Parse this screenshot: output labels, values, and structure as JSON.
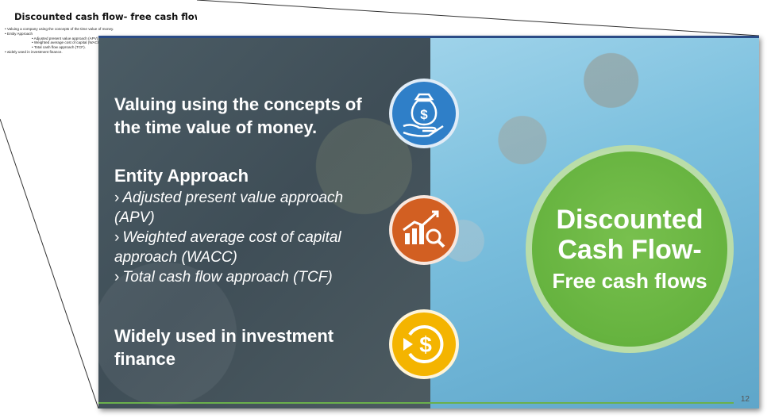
{
  "thumbnail": {
    "title": "Discounted cash flow- free cash flows",
    "bullets": [
      {
        "level": 1,
        "text": "Valuing a company using the concepts of the time value of money."
      },
      {
        "level": 1,
        "text": "Entity Approach"
      },
      {
        "level": 2,
        "text": "Adjusted present value approach (APV)"
      },
      {
        "level": 2,
        "text": "Weighted average cost of capital (WACC)"
      },
      {
        "level": 2,
        "text": "Total cash flow approach (TCF)."
      },
      {
        "level": 1,
        "text": "widely used in investment finance."
      }
    ]
  },
  "slide": {
    "heading1": "Valuing using the concepts of the time value of money.",
    "heading2": "Entity Approach",
    "sub1": "Adjusted present value approach (APV)",
    "sub2": "Weighted average cost of capital approach (WACC)",
    "sub3": "Total cash flow approach (TCF)",
    "heading3": "Widely used in investment finance",
    "arrow_glyph": "›",
    "circle_line1": "Discounted",
    "circle_line2": "Cash Flow-",
    "circle_line3": "Free cash flows",
    "page_number": "12",
    "icons": [
      {
        "name": "money-bag-hand-icon",
        "color": "#2f7fc8"
      },
      {
        "name": "chart-magnifier-icon",
        "color": "#d25f22"
      },
      {
        "name": "dollar-refresh-icon",
        "color": "#f4b400"
      }
    ],
    "colors": {
      "accent_green": "#6ab04c",
      "top_line": "#2a4b86"
    }
  }
}
